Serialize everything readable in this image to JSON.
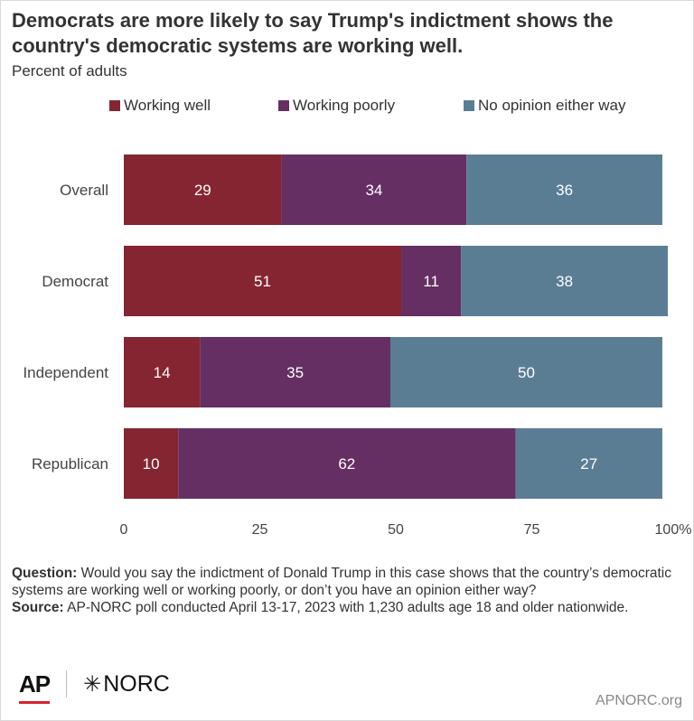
{
  "chart_data": {
    "type": "bar",
    "orientation": "horizontal",
    "stacked": true,
    "title": "Democrats are more likely to say Trump's indictment shows the country's democratic systems are working well.",
    "subtitle": "Percent of adults",
    "categories": [
      "Overall",
      "Democrat",
      "Independent",
      "Republican"
    ],
    "series": [
      {
        "name": "Working well",
        "color": "#862532",
        "values": [
          29,
          51,
          14,
          10
        ]
      },
      {
        "name": "Working poorly",
        "color": "#652f63",
        "values": [
          34,
          11,
          35,
          62
        ]
      },
      {
        "name": "No opinion either way",
        "color": "#5b7d94",
        "values": [
          36,
          38,
          50,
          27
        ]
      }
    ],
    "xlim": [
      0,
      100
    ],
    "xticks": [
      0,
      25,
      50,
      75,
      100
    ],
    "xtick_labels": [
      "0",
      "25",
      "50",
      "75",
      "100%"
    ],
    "legend_position": "top",
    "grid": false
  },
  "footnote": {
    "question_label": "Question:",
    "question_text": "Would you say the indictment of Donald Trump in this case shows that the country’s democratic systems are working well or working poorly, or don’t you have an opinion either way?",
    "source_label": "Source:",
    "source_text": "AP-NORC poll conducted April 13-17, 2023 with 1,230 adults age 18 and older nationwide."
  },
  "logos": {
    "ap": "AP",
    "norc": "NORC"
  },
  "site": "APNORC.org"
}
